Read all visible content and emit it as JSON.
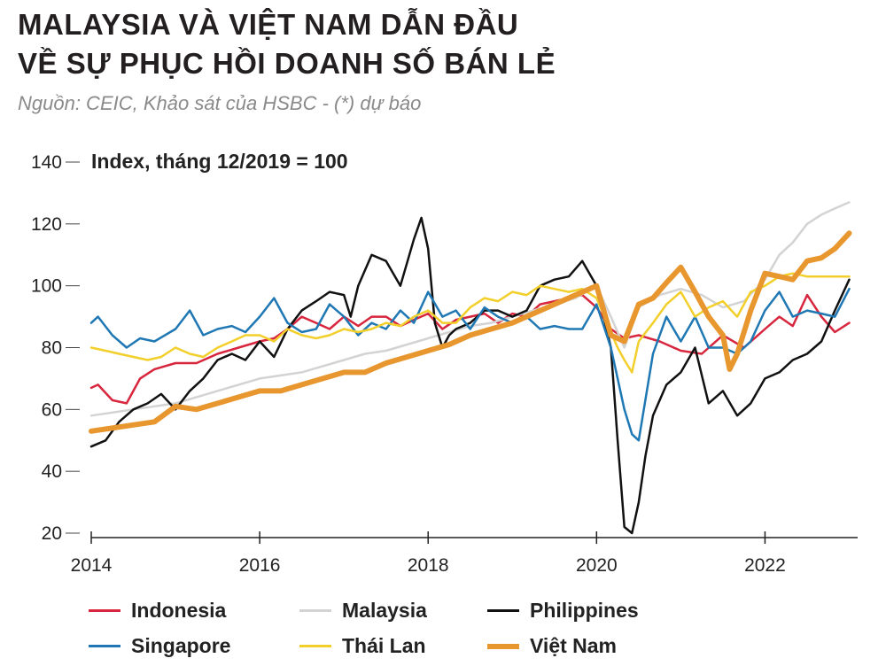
{
  "header": {
    "title_line1": "MALAYSIA VÀ VIỆT NAM DẪN ĐẦU",
    "title_line2": "VỀ SỰ PHỤC HỒI DOANH SỐ BÁN LẺ",
    "source": "Nguồn:  CEIC, Khảo sát của HSBC   -  (*) dự báo"
  },
  "chart_data": {
    "type": "line",
    "unit_label": "Index, tháng 12/2019 = 100",
    "xlim": [
      2014,
      2023.1
    ],
    "ylim": [
      20,
      140
    ],
    "x_ticks": [
      2014,
      2016,
      2018,
      2020,
      2022
    ],
    "x_tick_labels": [
      "2014",
      "2016",
      "2018",
      "2020",
      "2022"
    ],
    "y_ticks": [
      20,
      40,
      60,
      80,
      100,
      120,
      140
    ],
    "y_tick_labels": [
      "20",
      "40",
      "60",
      "80",
      "100",
      "120",
      "140"
    ],
    "grid": false,
    "legend_position": "bottom",
    "series": [
      {
        "name": "Indonesia",
        "color": "#d7263d",
        "width": 2.5,
        "x": [
          2014.0,
          2014.08,
          2014.25,
          2014.42,
          2014.58,
          2014.75,
          2015.0,
          2015.25,
          2015.5,
          2015.75,
          2016.0,
          2016.17,
          2016.33,
          2016.5,
          2016.67,
          2016.83,
          2017.0,
          2017.17,
          2017.33,
          2017.5,
          2017.67,
          2017.83,
          2018.0,
          2018.17,
          2018.33,
          2018.5,
          2018.67,
          2018.83,
          2019.0,
          2019.17,
          2019.33,
          2019.5,
          2019.67,
          2019.83,
          2020.0,
          2020.17,
          2020.33,
          2020.5,
          2020.75,
          2021.0,
          2021.25,
          2021.5,
          2021.75,
          2022.0,
          2022.17,
          2022.33,
          2022.5,
          2022.67,
          2022.83,
          2023.0
        ],
        "y": [
          67,
          68,
          63,
          62,
          70,
          73,
          75,
          75,
          78,
          80,
          82,
          83,
          86,
          90,
          88,
          86,
          90,
          87,
          90,
          90,
          87,
          89,
          91,
          86,
          89,
          90,
          91,
          88,
          91,
          90,
          94,
          95,
          96,
          97,
          93,
          86,
          83,
          84,
          82,
          79,
          78,
          84,
          80,
          86,
          90,
          87,
          97,
          90,
          85,
          88
        ]
      },
      {
        "name": "Malaysia",
        "color": "#d3d3d3",
        "width": 2.5,
        "x": [
          2014.0,
          2014.25,
          2014.5,
          2014.75,
          2015.0,
          2015.25,
          2015.5,
          2015.75,
          2016.0,
          2016.25,
          2016.5,
          2016.75,
          2017.0,
          2017.25,
          2017.5,
          2017.75,
          2018.0,
          2018.25,
          2018.5,
          2018.75,
          2019.0,
          2019.25,
          2019.5,
          2019.75,
          2020.0,
          2020.17,
          2020.33,
          2020.5,
          2020.75,
          2021.0,
          2021.25,
          2021.5,
          2021.75,
          2022.0,
          2022.17,
          2022.33,
          2022.5,
          2022.67,
          2022.83,
          2023.0
        ],
        "y": [
          58,
          59,
          60,
          61,
          62,
          64,
          66,
          68,
          70,
          71,
          72,
          74,
          76,
          78,
          79,
          81,
          83,
          85,
          87,
          88,
          90,
          92,
          94,
          96,
          100,
          90,
          80,
          93,
          97,
          99,
          97,
          93,
          95,
          102,
          110,
          114,
          120,
          123,
          125,
          127
        ]
      },
      {
        "name": "Philippines",
        "color": "#111111",
        "width": 2.5,
        "x": [
          2014.0,
          2014.17,
          2014.33,
          2014.5,
          2014.67,
          2014.83,
          2015.0,
          2015.17,
          2015.33,
          2015.5,
          2015.67,
          2015.83,
          2016.0,
          2016.17,
          2016.33,
          2016.5,
          2016.67,
          2016.83,
          2017.0,
          2017.08,
          2017.17,
          2017.33,
          2017.5,
          2017.67,
          2017.83,
          2017.92,
          2018.0,
          2018.08,
          2018.17,
          2018.25,
          2018.33,
          2018.5,
          2018.67,
          2018.83,
          2019.0,
          2019.17,
          2019.33,
          2019.5,
          2019.67,
          2019.83,
          2020.0,
          2020.17,
          2020.25,
          2020.33,
          2020.42,
          2020.5,
          2020.58,
          2020.67,
          2020.83,
          2021.0,
          2021.17,
          2021.33,
          2021.5,
          2021.67,
          2021.83,
          2022.0,
          2022.17,
          2022.33,
          2022.5,
          2022.67,
          2022.83,
          2023.0
        ],
        "y": [
          48,
          50,
          56,
          60,
          62,
          65,
          60,
          66,
          70,
          76,
          78,
          76,
          82,
          77,
          86,
          92,
          95,
          98,
          97,
          90,
          100,
          110,
          108,
          100,
          115,
          122,
          112,
          88,
          80,
          84,
          86,
          88,
          92,
          92,
          90,
          92,
          100,
          102,
          103,
          108,
          100,
          80,
          50,
          22,
          20,
          30,
          45,
          58,
          68,
          72,
          80,
          62,
          66,
          58,
          62,
          70,
          72,
          76,
          78,
          82,
          92,
          102
        ]
      },
      {
        "name": "Singapore",
        "color": "#1f78b4",
        "width": 2.5,
        "x": [
          2014.0,
          2014.08,
          2014.25,
          2014.42,
          2014.58,
          2014.75,
          2015.0,
          2015.17,
          2015.33,
          2015.5,
          2015.67,
          2015.83,
          2016.0,
          2016.17,
          2016.33,
          2016.5,
          2016.67,
          2016.83,
          2017.0,
          2017.17,
          2017.33,
          2017.5,
          2017.67,
          2017.83,
          2018.0,
          2018.17,
          2018.33,
          2018.5,
          2018.67,
          2018.83,
          2019.0,
          2019.17,
          2019.33,
          2019.5,
          2019.67,
          2019.83,
          2020.0,
          2020.17,
          2020.33,
          2020.42,
          2020.5,
          2020.67,
          2020.83,
          2021.0,
          2021.17,
          2021.33,
          2021.5,
          2021.67,
          2021.83,
          2022.0,
          2022.17,
          2022.33,
          2022.5,
          2022.67,
          2022.83,
          2023.0
        ],
        "y": [
          88,
          90,
          84,
          80,
          83,
          82,
          86,
          92,
          84,
          86,
          87,
          85,
          90,
          96,
          88,
          85,
          86,
          94,
          90,
          84,
          88,
          86,
          92,
          88,
          98,
          90,
          92,
          86,
          93,
          90,
          88,
          90,
          86,
          87,
          86,
          86,
          94,
          80,
          60,
          52,
          50,
          78,
          90,
          82,
          90,
          80,
          80,
          78,
          82,
          92,
          98,
          90,
          92,
          91,
          90,
          99
        ]
      },
      {
        "name": "Thái Lan",
        "color": "#f2cf2a",
        "width": 2.5,
        "x": [
          2014.0,
          2014.17,
          2014.33,
          2014.5,
          2014.67,
          2014.83,
          2015.0,
          2015.17,
          2015.33,
          2015.5,
          2015.67,
          2015.83,
          2016.0,
          2016.17,
          2016.33,
          2016.5,
          2016.67,
          2016.83,
          2017.0,
          2017.17,
          2017.33,
          2017.5,
          2017.67,
          2017.83,
          2018.0,
          2018.17,
          2018.33,
          2018.5,
          2018.67,
          2018.83,
          2019.0,
          2019.17,
          2019.33,
          2019.5,
          2019.67,
          2019.83,
          2020.0,
          2020.17,
          2020.25,
          2020.33,
          2020.42,
          2020.5,
          2020.67,
          2020.83,
          2021.0,
          2021.17,
          2021.33,
          2021.5,
          2021.67,
          2021.83,
          2022.0,
          2022.17,
          2022.33,
          2022.5,
          2022.67,
          2022.83,
          2023.0
        ],
        "y": [
          80,
          79,
          78,
          77,
          76,
          77,
          80,
          78,
          77,
          80,
          82,
          84,
          84,
          82,
          86,
          84,
          83,
          84,
          86,
          85,
          86,
          88,
          87,
          90,
          92,
          88,
          88,
          93,
          96,
          95,
          98,
          97,
          100,
          99,
          98,
          99,
          96,
          85,
          80,
          76,
          72,
          82,
          88,
          94,
          98,
          90,
          93,
          95,
          90,
          98,
          100,
          103,
          104,
          103,
          103,
          103,
          103
        ]
      },
      {
        "name": "Việt Nam",
        "color": "#e8962e",
        "width": 6,
        "x": [
          2014.0,
          2014.25,
          2014.5,
          2014.75,
          2015.0,
          2015.25,
          2015.5,
          2015.75,
          2016.0,
          2016.25,
          2016.5,
          2016.75,
          2017.0,
          2017.25,
          2017.5,
          2017.75,
          2018.0,
          2018.25,
          2018.5,
          2018.75,
          2019.0,
          2019.25,
          2019.5,
          2019.75,
          2020.0,
          2020.17,
          2020.33,
          2020.5,
          2020.67,
          2020.83,
          2021.0,
          2021.17,
          2021.33,
          2021.5,
          2021.58,
          2021.67,
          2021.83,
          2022.0,
          2022.17,
          2022.33,
          2022.5,
          2022.67,
          2022.83,
          2023.0
        ],
        "y": [
          53,
          54,
          55,
          56,
          61,
          60,
          62,
          64,
          66,
          66,
          68,
          70,
          72,
          72,
          75,
          77,
          79,
          81,
          84,
          86,
          88,
          91,
          94,
          97,
          100,
          84,
          82,
          94,
          96,
          101,
          106,
          98,
          90,
          84,
          73,
          78,
          92,
          104,
          103,
          102,
          108,
          109,
          112,
          117
        ]
      }
    ]
  }
}
